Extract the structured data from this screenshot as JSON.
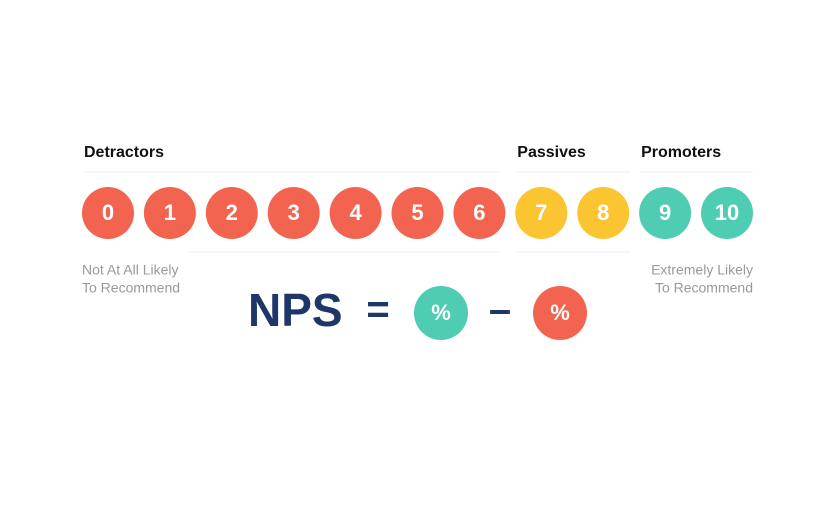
{
  "groups": [
    {
      "label": "Detractors",
      "color": "#f26450",
      "scores": [
        0,
        1,
        2,
        3,
        4,
        5,
        6
      ]
    },
    {
      "label": "Passives",
      "color": "#fbc531",
      "scores": [
        7,
        8
      ]
    },
    {
      "label": "Promoters",
      "color": "#4ecdb3",
      "scores": [
        9,
        10
      ]
    }
  ],
  "scale_notes": {
    "low": [
      "Not At All Likely",
      "To Recommend"
    ],
    "high": [
      "Extremely Likely",
      "To Recommend"
    ]
  },
  "formula": {
    "lhs": "NPS",
    "equals": "=",
    "minus": "–",
    "terms": [
      "%",
      "%"
    ]
  }
}
